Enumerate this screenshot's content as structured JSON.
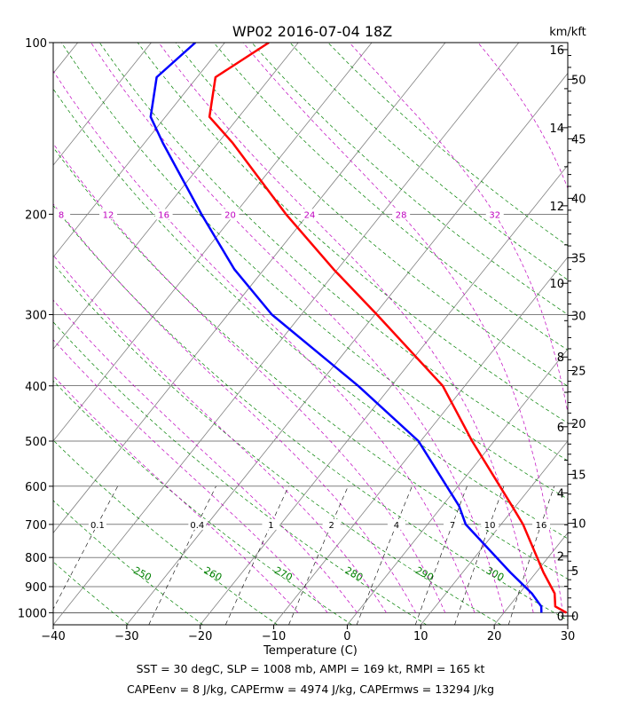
{
  "chart_data": {
    "type": "skew-t",
    "title": "WP02 2016-07-04 18Z",
    "xlabel": "Temperature (C)",
    "right_unit_label": "km/kft",
    "xlim": [
      -40,
      30
    ],
    "xticks": [
      "−40",
      "−30",
      "−20",
      "−10",
      "0",
      "10",
      "20",
      "30"
    ],
    "pressure_range": [
      1050,
      100
    ],
    "pressure_ticks": [
      1000,
      900,
      800,
      700,
      600,
      500,
      400,
      300,
      200,
      100
    ],
    "km_ticks": [
      "0",
      "2",
      "4",
      "6",
      "8",
      "10",
      "12",
      "14",
      "16"
    ],
    "kft_ticks": [
      "0",
      "5",
      "10",
      "15",
      "20",
      "25",
      "30",
      "35",
      "40",
      "45",
      "50"
    ],
    "mixing_ratio_labels": [
      "0.1",
      "0.4",
      "1",
      "2",
      "4",
      "7",
      "10",
      "16"
    ],
    "dry_adiabat_labels": [
      "250",
      "260",
      "270",
      "280",
      "290",
      "300"
    ],
    "moist_adiabat_labels": [
      "8",
      "12",
      "16",
      "20",
      "24",
      "28",
      "32"
    ],
    "series": [
      {
        "name": "temperature",
        "color": "#ff0000",
        "points": [
          {
            "p": 1000,
            "t": 28.5
          },
          {
            "p": 975,
            "t": 26.3
          },
          {
            "p": 925,
            "t": 24.8
          },
          {
            "p": 850,
            "t": 21.0
          },
          {
            "p": 700,
            "t": 13.0
          },
          {
            "p": 650,
            "t": 9.5
          },
          {
            "p": 500,
            "t": -3.0
          },
          {
            "p": 400,
            "t": -13.0
          },
          {
            "p": 300,
            "t": -29.7
          },
          {
            "p": 250,
            "t": -40.5
          },
          {
            "p": 200,
            "t": -53.0
          },
          {
            "p": 150,
            "t": -68.0
          },
          {
            "p": 135,
            "t": -74.0
          },
          {
            "p": 115,
            "t": -77.5
          },
          {
            "p": 100,
            "t": -74.0
          }
        ]
      },
      {
        "name": "dewpoint",
        "color": "#0000ff",
        "points": [
          {
            "p": 1000,
            "t": 25.1
          },
          {
            "p": 975,
            "t": 24.4
          },
          {
            "p": 925,
            "t": 21.7
          },
          {
            "p": 850,
            "t": 16.5
          },
          {
            "p": 700,
            "t": 5.2
          },
          {
            "p": 650,
            "t": 2.3
          },
          {
            "p": 500,
            "t": -10.3
          },
          {
            "p": 400,
            "t": -24.5
          },
          {
            "p": 300,
            "t": -44.0
          },
          {
            "p": 250,
            "t": -54.0
          },
          {
            "p": 200,
            "t": -64.5
          },
          {
            "p": 150,
            "t": -77.5
          },
          {
            "p": 135,
            "t": -82.0
          },
          {
            "p": 115,
            "t": -85.5
          },
          {
            "p": 100,
            "t": -84.0
          }
        ]
      }
    ]
  },
  "captions": {
    "line1": "SST = 30 degC, SLP = 1008 mb, AMPI = 169 kt, RMPI = 165 kt",
    "line2": "CAPEenv = 8 J/kg, CAPErmw = 4974 J/kg, CAPErmws = 13294 J/kg"
  },
  "colors": {
    "isobar": "#000000",
    "isotherm": "#808080",
    "dry_adiabat": "#008000",
    "moist_adiabat": "#bf00bf",
    "mixing_ratio": "#000000"
  }
}
